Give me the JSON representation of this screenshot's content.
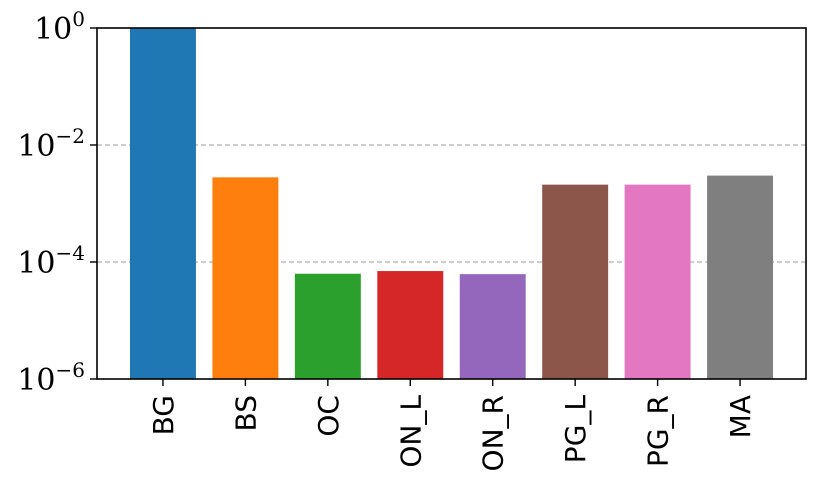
{
  "chart_data": {
    "type": "bar",
    "title": "",
    "xlabel": "",
    "ylabel": "",
    "yscale": "log",
    "ylim": [
      1e-06,
      1
    ],
    "grid": "y-dashed at major ticks",
    "categories": [
      "BG",
      "BS",
      "OC",
      "ON_L",
      "ON_R",
      "PG_L",
      "PG_R",
      "MA"
    ],
    "values": [
      1.0,
      0.0028,
      6.3e-05,
      7e-05,
      6.2e-05,
      0.0021,
      0.0021,
      0.003
    ],
    "colors": [
      "#1f77b4",
      "#ff7f0e",
      "#2ca02c",
      "#d62728",
      "#9467bd",
      "#8c564b",
      "#e377c2",
      "#7f7f7f"
    ],
    "yticks": [
      {
        "base": "10",
        "exp": "0",
        "value": 1
      },
      {
        "base": "10",
        "exp": "−2",
        "value": 0.01
      },
      {
        "base": "10",
        "exp": "−4",
        "value": 0.0001
      },
      {
        "base": "10",
        "exp": "−6",
        "value": 1e-06
      }
    ]
  }
}
